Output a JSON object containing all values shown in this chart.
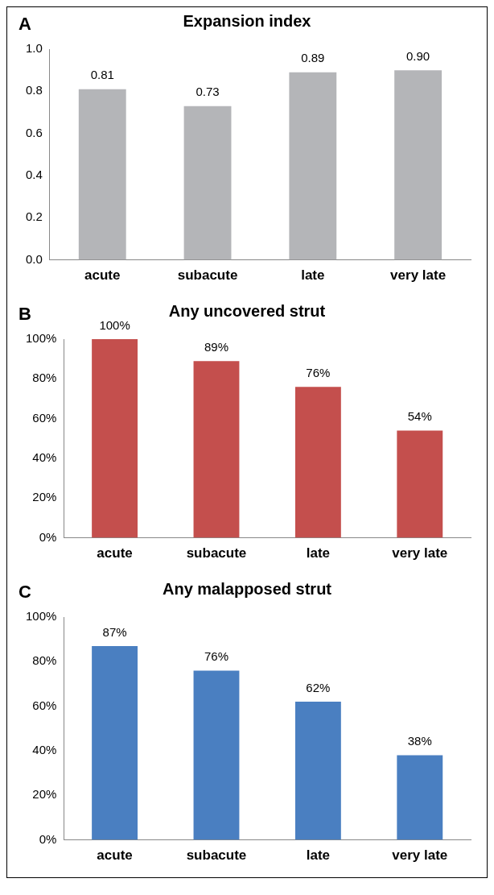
{
  "chart_data": [
    {
      "type": "bar",
      "title": "Expansion index",
      "annotations": [
        "A"
      ],
      "categories": [
        "acute",
        "subacute",
        "late",
        "very late"
      ],
      "values": [
        0.81,
        0.73,
        0.89,
        0.9
      ],
      "value_labels": [
        "0.81",
        "0.73",
        "0.89",
        "0.90"
      ],
      "color": "#b4b5b8",
      "ylim": [
        0,
        1.0
      ],
      "yticks": [
        {
          "value": 0,
          "label": "0.0"
        },
        {
          "value": 0.2,
          "label": "0.2"
        },
        {
          "value": 0.4,
          "label": "0.4"
        },
        {
          "value": 0.6,
          "label": "0.6"
        },
        {
          "value": 0.8,
          "label": "0.8"
        },
        {
          "value": 1.0,
          "label": "1.0"
        }
      ],
      "grid": false,
      "legend": false
    },
    {
      "type": "bar",
      "title": "Any uncovered strut",
      "annotations": [
        "B"
      ],
      "categories": [
        "acute",
        "subacute",
        "late",
        "very late"
      ],
      "values": [
        100,
        89,
        76,
        54
      ],
      "value_labels": [
        "100%",
        "89%",
        "76%",
        "54%"
      ],
      "color": "#c44f4d",
      "ylim": [
        0,
        100
      ],
      "yticks": [
        {
          "value": 0,
          "label": "0%"
        },
        {
          "value": 20,
          "label": "20%"
        },
        {
          "value": 40,
          "label": "40%"
        },
        {
          "value": 60,
          "label": "60%"
        },
        {
          "value": 80,
          "label": "80%"
        },
        {
          "value": 100,
          "label": "100%"
        }
      ],
      "grid": false,
      "legend": false
    },
    {
      "type": "bar",
      "title": "Any malapposed strut",
      "annotations": [
        "C"
      ],
      "categories": [
        "acute",
        "subacute",
        "late",
        "very late"
      ],
      "values": [
        87,
        76,
        62,
        38
      ],
      "value_labels": [
        "87%",
        "76%",
        "62%",
        "38%"
      ],
      "color": "#4a7fc1",
      "ylim": [
        0,
        100
      ],
      "yticks": [
        {
          "value": 0,
          "label": "0%"
        },
        {
          "value": 20,
          "label": "20%"
        },
        {
          "value": 40,
          "label": "40%"
        },
        {
          "value": 60,
          "label": "60%"
        },
        {
          "value": 80,
          "label": "80%"
        },
        {
          "value": 100,
          "label": "100%"
        }
      ],
      "grid": false,
      "legend": false
    }
  ]
}
